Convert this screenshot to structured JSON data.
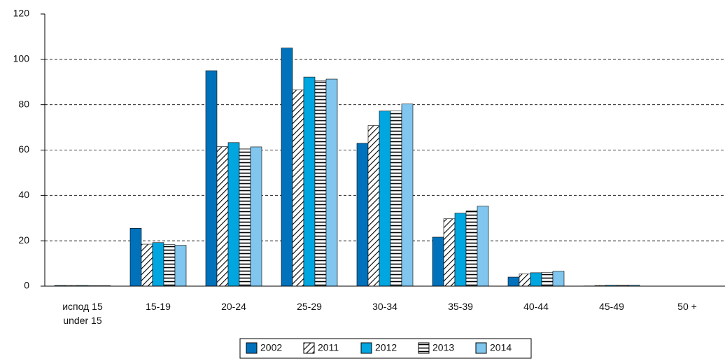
{
  "chart_data": {
    "type": "bar",
    "categories": [
      "испод 15\nunder 15",
      "15-19",
      "20-24",
      "25-29",
      "30-34",
      "35-39",
      "40-44",
      "45-49",
      "50 +"
    ],
    "series": [
      {
        "name": "2002",
        "color": "#0072bc",
        "values": [
          0.3,
          25.5,
          95,
          105,
          63,
          21.6,
          4.0,
          0.1,
          0
        ]
      },
      {
        "name": "2011",
        "color": "#000000",
        "pattern": "diagonal",
        "values": [
          0.3,
          18.5,
          61.5,
          86.5,
          70.8,
          29.7,
          5.4,
          0.3,
          0
        ]
      },
      {
        "name": "2012",
        "color": "#00a6e0",
        "values": [
          0.3,
          19.2,
          63.3,
          92.2,
          77.2,
          32.2,
          5.9,
          0.4,
          0
        ]
      },
      {
        "name": "2013",
        "color": "#000000",
        "pattern": "horizontal",
        "values": [
          0.2,
          18.3,
          60.5,
          90.5,
          77.3,
          33.2,
          6.1,
          0.4,
          0
        ]
      },
      {
        "name": "2014",
        "color": "#80c6ee",
        "values": [
          0.2,
          18.0,
          61.4,
          91.3,
          80.3,
          35.3,
          6.6,
          0.5,
          0
        ]
      }
    ],
    "ylim": [
      0,
      120
    ],
    "yticks": [
      0,
      20,
      40,
      60,
      80,
      100,
      120
    ],
    "grid": true,
    "legend": "bottom"
  }
}
